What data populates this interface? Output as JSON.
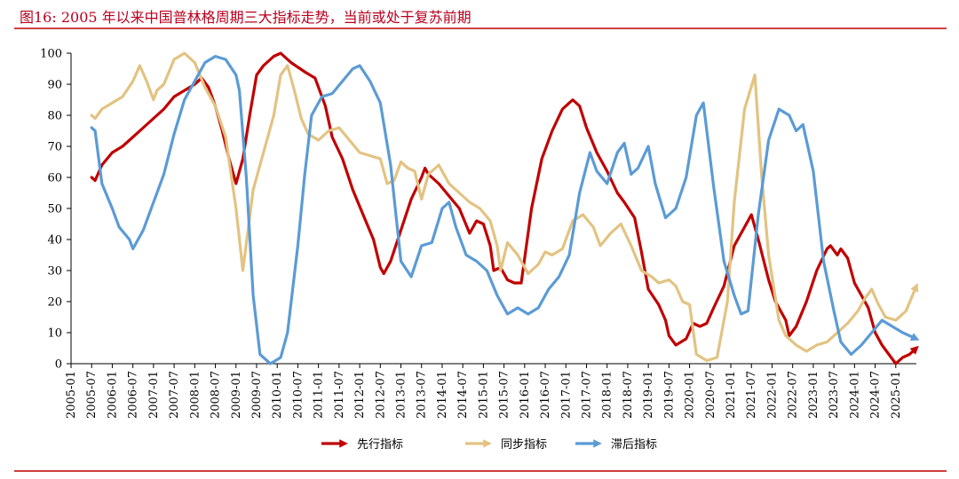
{
  "figure": {
    "title": "图16:   2005 年以来中国普林格周期三大指标走势，当前或处于复苏前期",
    "accent_color": "#c00000"
  },
  "chart_data": {
    "type": "line",
    "title": "",
    "xlabel": "",
    "ylabel": "",
    "ylim": [
      0,
      100
    ],
    "yticks": [
      0,
      10,
      20,
      30,
      40,
      50,
      60,
      70,
      80,
      90,
      100
    ],
    "xlim": [
      "2005-01",
      "2025-07"
    ],
    "xtick_labels": [
      "2005-01",
      "2005-07",
      "2006-01",
      "2006-07",
      "2007-01",
      "2007-07",
      "2008-01",
      "2008-07",
      "2009-01",
      "2009-07",
      "2010-01",
      "2010-07",
      "2011-01",
      "2011-07",
      "2012-01",
      "2012-07",
      "2013-01",
      "2013-07",
      "2014-01",
      "2014-07",
      "2015-01",
      "2015-07",
      "2016-01",
      "2016-07",
      "2017-01",
      "2017-07",
      "2018-01",
      "2018-07",
      "2019-01",
      "2019-07",
      "2020-01",
      "2020-07",
      "2021-01",
      "2021-07",
      "2022-01",
      "2022-07",
      "2023-01",
      "2023-07",
      "2024-01",
      "2024-07",
      "2025-01"
    ],
    "legend_position": "bottom-center",
    "grid": false,
    "series": [
      {
        "name": "先行指标",
        "color": "#c00000",
        "arrow": true,
        "points": [
          [
            "2005-07",
            60
          ],
          [
            "2005-08",
            59
          ],
          [
            "2005-10",
            64
          ],
          [
            "2006-01",
            68
          ],
          [
            "2006-04",
            70
          ],
          [
            "2006-07",
            73
          ],
          [
            "2006-10",
            76
          ],
          [
            "2007-01",
            79
          ],
          [
            "2007-04",
            82
          ],
          [
            "2007-07",
            86
          ],
          [
            "2007-10",
            88
          ],
          [
            "2008-01",
            90
          ],
          [
            "2008-03",
            92
          ],
          [
            "2008-05",
            89
          ],
          [
            "2008-07",
            83
          ],
          [
            "2008-09",
            75
          ],
          [
            "2008-11",
            66
          ],
          [
            "2009-01",
            58
          ],
          [
            "2009-03",
            66
          ],
          [
            "2009-05",
            80
          ],
          [
            "2009-07",
            93
          ],
          [
            "2009-09",
            96
          ],
          [
            "2009-12",
            99
          ],
          [
            "2010-02",
            100
          ],
          [
            "2010-05",
            97
          ],
          [
            "2010-09",
            94
          ],
          [
            "2010-12",
            92
          ],
          [
            "2011-03",
            83
          ],
          [
            "2011-05",
            73
          ],
          [
            "2011-08",
            66
          ],
          [
            "2011-11",
            56
          ],
          [
            "2012-02",
            48
          ],
          [
            "2012-05",
            40
          ],
          [
            "2012-07",
            31
          ],
          [
            "2012-08",
            29
          ],
          [
            "2012-10",
            33
          ],
          [
            "2013-01",
            43
          ],
          [
            "2013-04",
            53
          ],
          [
            "2013-07",
            60
          ],
          [
            "2013-08",
            63
          ],
          [
            "2013-09",
            61
          ],
          [
            "2013-12",
            58
          ],
          [
            "2014-03",
            54
          ],
          [
            "2014-06",
            50
          ],
          [
            "2014-09",
            42
          ],
          [
            "2014-11",
            46
          ],
          [
            "2015-01",
            45
          ],
          [
            "2015-03",
            38
          ],
          [
            "2015-04",
            30
          ],
          [
            "2015-06",
            31
          ],
          [
            "2015-08",
            27
          ],
          [
            "2015-10",
            26
          ],
          [
            "2015-12",
            26
          ],
          [
            "2016-03",
            50
          ],
          [
            "2016-06",
            66
          ],
          [
            "2016-09",
            75
          ],
          [
            "2016-12",
            82
          ],
          [
            "2017-03",
            85
          ],
          [
            "2017-05",
            83
          ],
          [
            "2017-07",
            76
          ],
          [
            "2017-10",
            68
          ],
          [
            "2018-01",
            62
          ],
          [
            "2018-04",
            55
          ],
          [
            "2018-06",
            52
          ],
          [
            "2018-09",
            47
          ],
          [
            "2018-11",
            36
          ],
          [
            "2019-01",
            24
          ],
          [
            "2019-04",
            19
          ],
          [
            "2019-06",
            14
          ],
          [
            "2019-07",
            9
          ],
          [
            "2019-09",
            6
          ],
          [
            "2019-12",
            8
          ],
          [
            "2020-02",
            13
          ],
          [
            "2020-04",
            12
          ],
          [
            "2020-06",
            13
          ],
          [
            "2020-08",
            18
          ],
          [
            "2020-11",
            25
          ],
          [
            "2021-02",
            38
          ],
          [
            "2021-05",
            44
          ],
          [
            "2021-07",
            48
          ],
          [
            "2021-09",
            40
          ],
          [
            "2021-12",
            27
          ],
          [
            "2022-02",
            20
          ],
          [
            "2022-05",
            14
          ],
          [
            "2022-06",
            9
          ],
          [
            "2022-08",
            12
          ],
          [
            "2022-11",
            20
          ],
          [
            "2023-02",
            30
          ],
          [
            "2023-05",
            37
          ],
          [
            "2023-06",
            38
          ],
          [
            "2023-08",
            35
          ],
          [
            "2023-09",
            37
          ],
          [
            "2023-11",
            34
          ],
          [
            "2024-01",
            26
          ],
          [
            "2024-03",
            22
          ],
          [
            "2024-05",
            18
          ],
          [
            "2024-07",
            10
          ],
          [
            "2024-09",
            6
          ],
          [
            "2024-11",
            3
          ],
          [
            "2025-01",
            0
          ],
          [
            "2025-03",
            2
          ],
          [
            "2025-05",
            3
          ],
          [
            "2025-07",
            5
          ]
        ]
      },
      {
        "name": "同步指标",
        "color": "#e2c382",
        "arrow": true,
        "points": [
          [
            "2005-07",
            80
          ],
          [
            "2005-08",
            79
          ],
          [
            "2005-10",
            82
          ],
          [
            "2006-01",
            84
          ],
          [
            "2006-04",
            86
          ],
          [
            "2006-07",
            91
          ],
          [
            "2006-09",
            96
          ],
          [
            "2006-11",
            91
          ],
          [
            "2007-01",
            85
          ],
          [
            "2007-02",
            88
          ],
          [
            "2007-04",
            90
          ],
          [
            "2007-07",
            98
          ],
          [
            "2007-10",
            100
          ],
          [
            "2008-01",
            97
          ],
          [
            "2008-04",
            89
          ],
          [
            "2008-07",
            83
          ],
          [
            "2008-10",
            73
          ],
          [
            "2009-01",
            50
          ],
          [
            "2009-03",
            30
          ],
          [
            "2009-06",
            56
          ],
          [
            "2009-09",
            68
          ],
          [
            "2009-12",
            80
          ],
          [
            "2010-02",
            93
          ],
          [
            "2010-04",
            96
          ],
          [
            "2010-06",
            88
          ],
          [
            "2010-08",
            79
          ],
          [
            "2010-10",
            74
          ],
          [
            "2011-01",
            72
          ],
          [
            "2011-04",
            75
          ],
          [
            "2011-07",
            76
          ],
          [
            "2011-10",
            72
          ],
          [
            "2012-01",
            68
          ],
          [
            "2012-04",
            67
          ],
          [
            "2012-07",
            66
          ],
          [
            "2012-09",
            58
          ],
          [
            "2012-11",
            59
          ],
          [
            "2013-01",
            65
          ],
          [
            "2013-03",
            63
          ],
          [
            "2013-05",
            62
          ],
          [
            "2013-07",
            53
          ],
          [
            "2013-09",
            61
          ],
          [
            "2013-12",
            64
          ],
          [
            "2014-03",
            58
          ],
          [
            "2014-06",
            55
          ],
          [
            "2014-09",
            52
          ],
          [
            "2014-12",
            50
          ],
          [
            "2015-03",
            46
          ],
          [
            "2015-05",
            38
          ],
          [
            "2015-06",
            30
          ],
          [
            "2015-08",
            39
          ],
          [
            "2015-11",
            35
          ],
          [
            "2016-02",
            29
          ],
          [
            "2016-05",
            32
          ],
          [
            "2016-07",
            36
          ],
          [
            "2016-09",
            35
          ],
          [
            "2016-12",
            37
          ],
          [
            "2017-03",
            46
          ],
          [
            "2017-06",
            48
          ],
          [
            "2017-09",
            44
          ],
          [
            "2017-11",
            38
          ],
          [
            "2018-02",
            42
          ],
          [
            "2018-05",
            45
          ],
          [
            "2018-08",
            38
          ],
          [
            "2018-11",
            30
          ],
          [
            "2019-02",
            28
          ],
          [
            "2019-04",
            26
          ],
          [
            "2019-07",
            27
          ],
          [
            "2019-09",
            25
          ],
          [
            "2019-11",
            20
          ],
          [
            "2020-01",
            19
          ],
          [
            "2020-03",
            3
          ],
          [
            "2020-06",
            1
          ],
          [
            "2020-09",
            2
          ],
          [
            "2020-12",
            20
          ],
          [
            "2021-02",
            52
          ],
          [
            "2021-05",
            82
          ],
          [
            "2021-08",
            93
          ],
          [
            "2021-10",
            60
          ],
          [
            "2021-12",
            35
          ],
          [
            "2022-03",
            14
          ],
          [
            "2022-05",
            9
          ],
          [
            "2022-08",
            6
          ],
          [
            "2022-11",
            4
          ],
          [
            "2023-02",
            6
          ],
          [
            "2023-05",
            7
          ],
          [
            "2023-08",
            10
          ],
          [
            "2023-11",
            13
          ],
          [
            "2024-02",
            17
          ],
          [
            "2024-04",
            21
          ],
          [
            "2024-06",
            24
          ],
          [
            "2024-08",
            19
          ],
          [
            "2024-10",
            15
          ],
          [
            "2025-01",
            14
          ],
          [
            "2025-04",
            17
          ],
          [
            "2025-07",
            25
          ]
        ]
      },
      {
        "name": "滞后指标",
        "color": "#5b9bd5",
        "arrow": true,
        "points": [
          [
            "2005-07",
            76
          ],
          [
            "2005-08",
            75
          ],
          [
            "2005-10",
            58
          ],
          [
            "2006-01",
            50
          ],
          [
            "2006-03",
            44
          ],
          [
            "2006-06",
            40
          ],
          [
            "2006-07",
            37
          ],
          [
            "2006-10",
            43
          ],
          [
            "2007-01",
            52
          ],
          [
            "2007-04",
            61
          ],
          [
            "2007-07",
            74
          ],
          [
            "2007-10",
            85
          ],
          [
            "2008-01",
            91
          ],
          [
            "2008-04",
            97
          ],
          [
            "2008-07",
            99
          ],
          [
            "2008-10",
            98
          ],
          [
            "2009-01",
            93
          ],
          [
            "2009-02",
            88
          ],
          [
            "2009-04",
            60
          ],
          [
            "2009-06",
            22
          ],
          [
            "2009-08",
            3
          ],
          [
            "2009-11",
            0
          ],
          [
            "2010-02",
            2
          ],
          [
            "2010-04",
            10
          ],
          [
            "2010-07",
            38
          ],
          [
            "2010-09",
            61
          ],
          [
            "2010-11",
            80
          ],
          [
            "2011-02",
            86
          ],
          [
            "2011-05",
            87
          ],
          [
            "2011-08",
            91
          ],
          [
            "2011-11",
            95
          ],
          [
            "2012-01",
            96
          ],
          [
            "2012-04",
            91
          ],
          [
            "2012-07",
            84
          ],
          [
            "2012-10",
            64
          ],
          [
            "2013-01",
            33
          ],
          [
            "2013-04",
            28
          ],
          [
            "2013-07",
            38
          ],
          [
            "2013-10",
            39
          ],
          [
            "2014-01",
            50
          ],
          [
            "2014-03",
            52
          ],
          [
            "2014-05",
            44
          ],
          [
            "2014-08",
            35
          ],
          [
            "2014-11",
            33
          ],
          [
            "2015-02",
            30
          ],
          [
            "2015-05",
            22
          ],
          [
            "2015-08",
            16
          ],
          [
            "2015-11",
            18
          ],
          [
            "2016-02",
            16
          ],
          [
            "2016-05",
            18
          ],
          [
            "2016-08",
            24
          ],
          [
            "2016-11",
            28
          ],
          [
            "2017-02",
            35
          ],
          [
            "2017-05",
            55
          ],
          [
            "2017-08",
            68
          ],
          [
            "2017-10",
            62
          ],
          [
            "2018-01",
            58
          ],
          [
            "2018-04",
            68
          ],
          [
            "2018-06",
            71
          ],
          [
            "2018-08",
            61
          ],
          [
            "2018-10",
            63
          ],
          [
            "2019-01",
            70
          ],
          [
            "2019-03",
            58
          ],
          [
            "2019-06",
            47
          ],
          [
            "2019-09",
            50
          ],
          [
            "2019-12",
            60
          ],
          [
            "2020-03",
            80
          ],
          [
            "2020-05",
            84
          ],
          [
            "2020-08",
            57
          ],
          [
            "2020-11",
            33
          ],
          [
            "2021-02",
            22
          ],
          [
            "2021-04",
            16
          ],
          [
            "2021-06",
            17
          ],
          [
            "2021-09",
            48
          ],
          [
            "2021-12",
            72
          ],
          [
            "2022-03",
            82
          ],
          [
            "2022-06",
            80
          ],
          [
            "2022-08",
            75
          ],
          [
            "2022-10",
            77
          ],
          [
            "2023-01",
            62
          ],
          [
            "2023-04",
            33
          ],
          [
            "2023-07",
            17
          ],
          [
            "2023-09",
            7
          ],
          [
            "2023-12",
            3
          ],
          [
            "2024-03",
            6
          ],
          [
            "2024-06",
            10
          ],
          [
            "2024-09",
            14
          ],
          [
            "2024-12",
            12
          ],
          [
            "2025-03",
            10
          ],
          [
            "2025-07",
            8
          ]
        ]
      }
    ]
  }
}
